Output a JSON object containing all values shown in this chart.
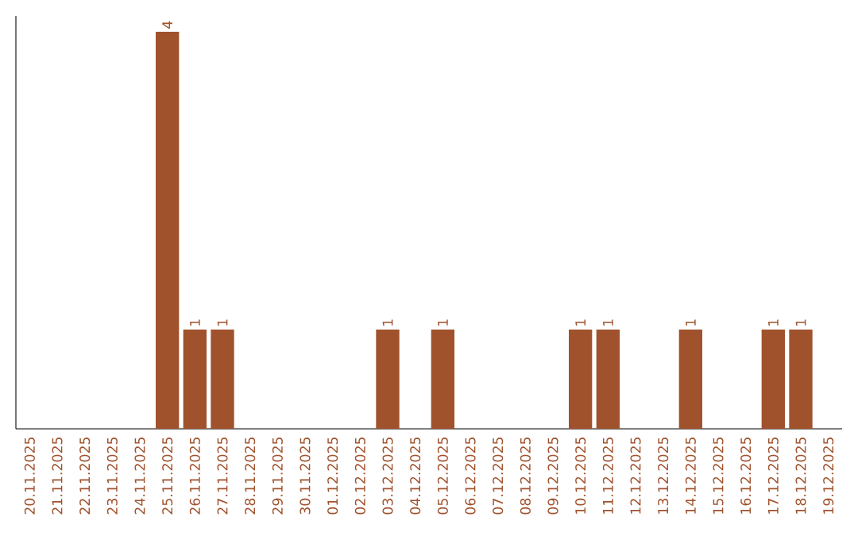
{
  "chart_data": {
    "type": "bar",
    "categories": [
      "20.11.2025",
      "21.11.2025",
      "22.11.2025",
      "23.11.2025",
      "24.11.2025",
      "25.11.2025",
      "26.11.2025",
      "27.11.2025",
      "28.11.2025",
      "29.11.2025",
      "30.11.2025",
      "01.12.2025",
      "02.12.2025",
      "03.12.2025",
      "04.12.2025",
      "05.12.2025",
      "06.12.2025",
      "07.12.2025",
      "08.12.2025",
      "09.12.2025",
      "10.12.2025",
      "11.12.2025",
      "12.12.2025",
      "13.12.2025",
      "14.12.2025",
      "15.12.2025",
      "16.12.2025",
      "17.12.2025",
      "18.12.2025",
      "19.12.2025"
    ],
    "values": [
      0,
      0,
      0,
      0,
      0,
      4,
      1,
      1,
      0,
      0,
      0,
      0,
      0,
      1,
      0,
      1,
      0,
      0,
      0,
      0,
      1,
      1,
      0,
      0,
      1,
      0,
      0,
      1,
      1,
      0
    ],
    "value_labels": [
      null,
      null,
      null,
      null,
      null,
      "4",
      "1",
      "1",
      null,
      null,
      null,
      null,
      null,
      "1",
      null,
      "1",
      null,
      null,
      null,
      null,
      "1",
      "1",
      null,
      null,
      "1",
      null,
      null,
      "1",
      "1",
      null
    ],
    "color": "#a0522d"
  }
}
